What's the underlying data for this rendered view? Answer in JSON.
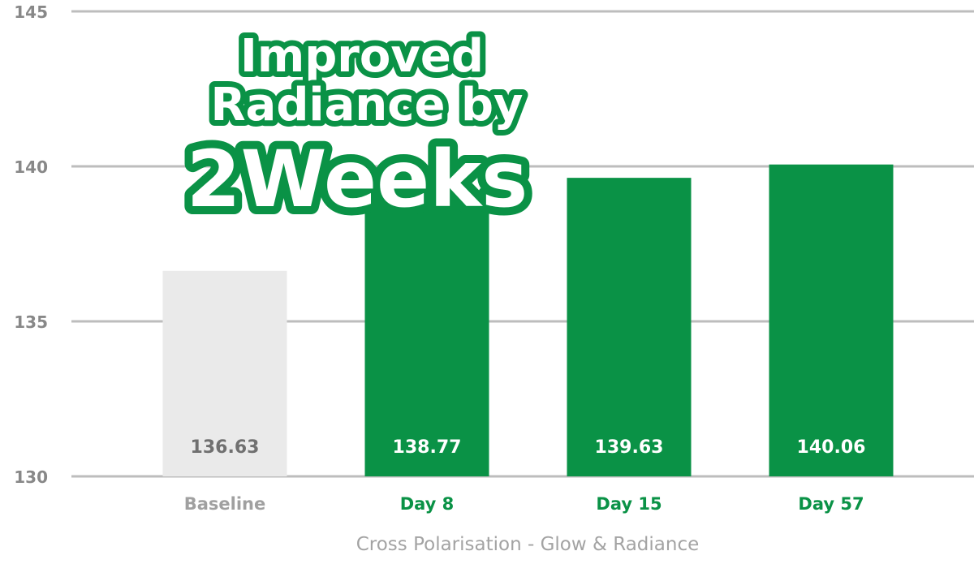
{
  "chart_data": {
    "type": "bar",
    "categories": [
      "Baseline",
      "Day 8",
      "Day 15",
      "Day 57"
    ],
    "values": [
      136.63,
      138.77,
      139.63,
      140.06
    ],
    "value_labels": [
      "136.63",
      "138.77",
      "139.63",
      "140.06"
    ],
    "ylim": [
      130,
      145
    ],
    "yticks": [
      130,
      135,
      140,
      145
    ],
    "xlabel": "Cross Polarisation - Glow & Radiance",
    "ylabel": "",
    "title": "",
    "grid": true,
    "colors": {
      "baseline_bar": "#eaeaea",
      "bar": "#0a9246",
      "baseline_value_text": "#707070",
      "value_text": "#ffffff",
      "baseline_category_text": "#a0a0a0",
      "category_text": "#0a9246",
      "gridline": "#bdbdbd",
      "tick_text": "#888888"
    }
  },
  "overlay": {
    "line1": "Improved",
    "line2": "Radiance by",
    "line3": "2Weeks",
    "fill_color": "#ffffff",
    "outline_color": "#0a9246"
  }
}
